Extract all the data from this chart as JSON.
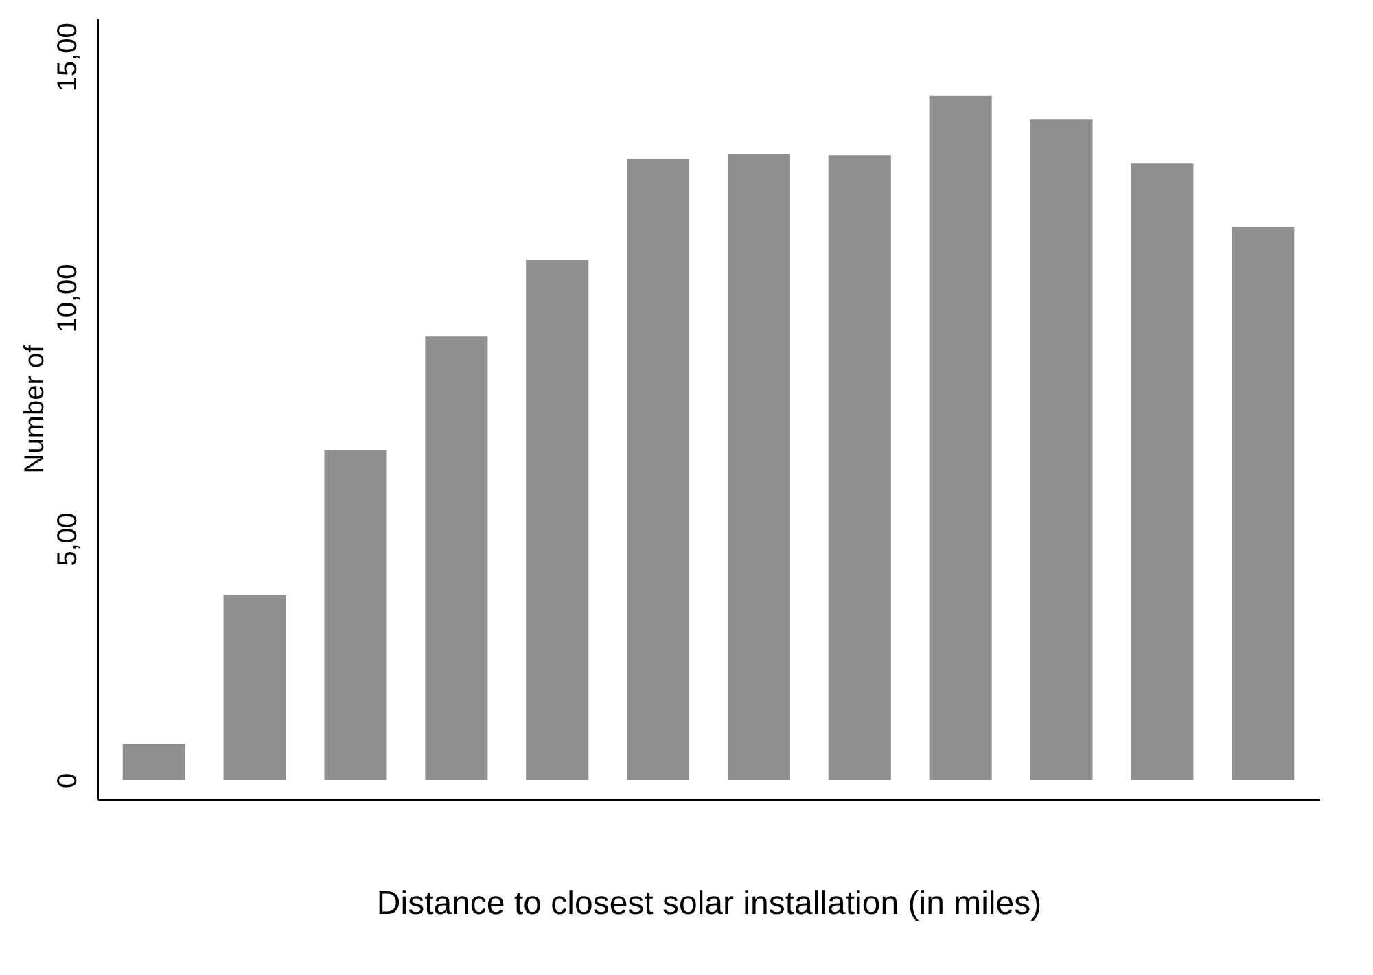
{
  "chart_data": {
    "type": "bar",
    "xlabel": "Distance to closest solar installation (in miles)",
    "ylabel": "Number of",
    "categories": [
      null,
      null,
      null,
      null,
      null,
      null,
      null,
      null,
      null,
      null,
      null,
      null
    ],
    "values": [
      0.74,
      3.84,
      6.83,
      9.19,
      10.79,
      12.87,
      12.98,
      12.95,
      14.18,
      13.69,
      12.78,
      11.47
    ],
    "color": "#8f8f8f",
    "ylim": [
      -0.4,
      15.8
    ],
    "yticks": [
      0,
      {
        "value": 5,
        "label": "5,00"
      },
      {
        "value": 10,
        "label": "10,00"
      },
      {
        "value": 15,
        "label": "15,00"
      }
    ],
    "grid": false
  }
}
